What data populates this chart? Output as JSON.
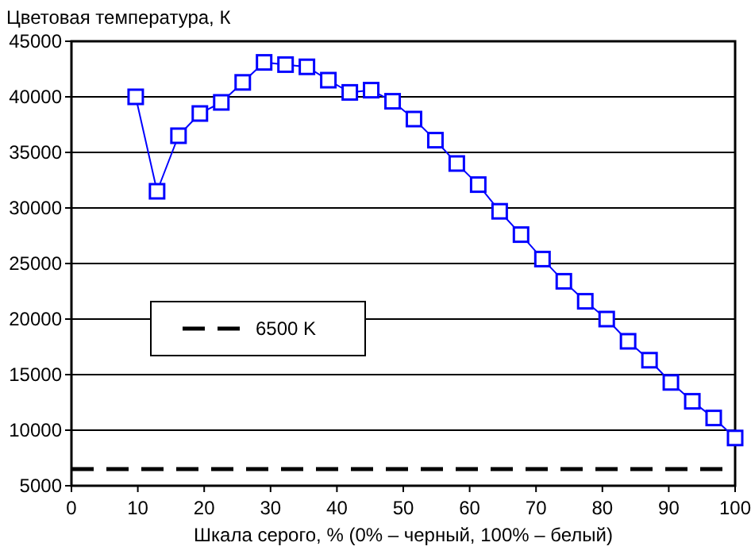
{
  "chart_data": {
    "type": "line",
    "xlabel": "Шкала серого, % (0% – черный, 100% – белый)",
    "ylabel": "Цветовая температура, К",
    "x": [
      9.68,
      12.9,
      16.13,
      19.35,
      22.58,
      25.81,
      29.03,
      32.26,
      35.48,
      38.71,
      41.94,
      45.16,
      48.39,
      51.61,
      54.84,
      58.06,
      61.29,
      64.52,
      67.74,
      70.97,
      74.19,
      77.42,
      80.65,
      83.87,
      87.1,
      90.32,
      93.55,
      96.77,
      100
    ],
    "series": [
      {
        "color": "#0000ff",
        "values": [
          40000,
          31500,
          36500,
          38500,
          39500,
          41300,
          43100,
          42900,
          42700,
          41500,
          40400,
          40600,
          39600,
          38000,
          36100,
          34000,
          32100,
          29700,
          27600,
          25400,
          23400,
          21600,
          20000,
          18000,
          16300,
          14300,
          12600,
          11100,
          9300
        ]
      }
    ],
    "xlim": [
      0,
      100
    ],
    "xticks": [
      0,
      10,
      20,
      30,
      40,
      50,
      60,
      70,
      80,
      90,
      100
    ],
    "ylim": [
      5000,
      45000
    ],
    "yticks": [
      5000,
      10000,
      15000,
      20000,
      25000,
      30000,
      35000,
      40000,
      45000
    ],
    "grid": "y",
    "marker": "square",
    "line_style": "solid",
    "legend": "left",
    "ref_lines": [
      {
        "axis": "y",
        "value": 6500,
        "label": "6500 K",
        "color": "#000000",
        "line_style": "dashed"
      }
    ]
  }
}
